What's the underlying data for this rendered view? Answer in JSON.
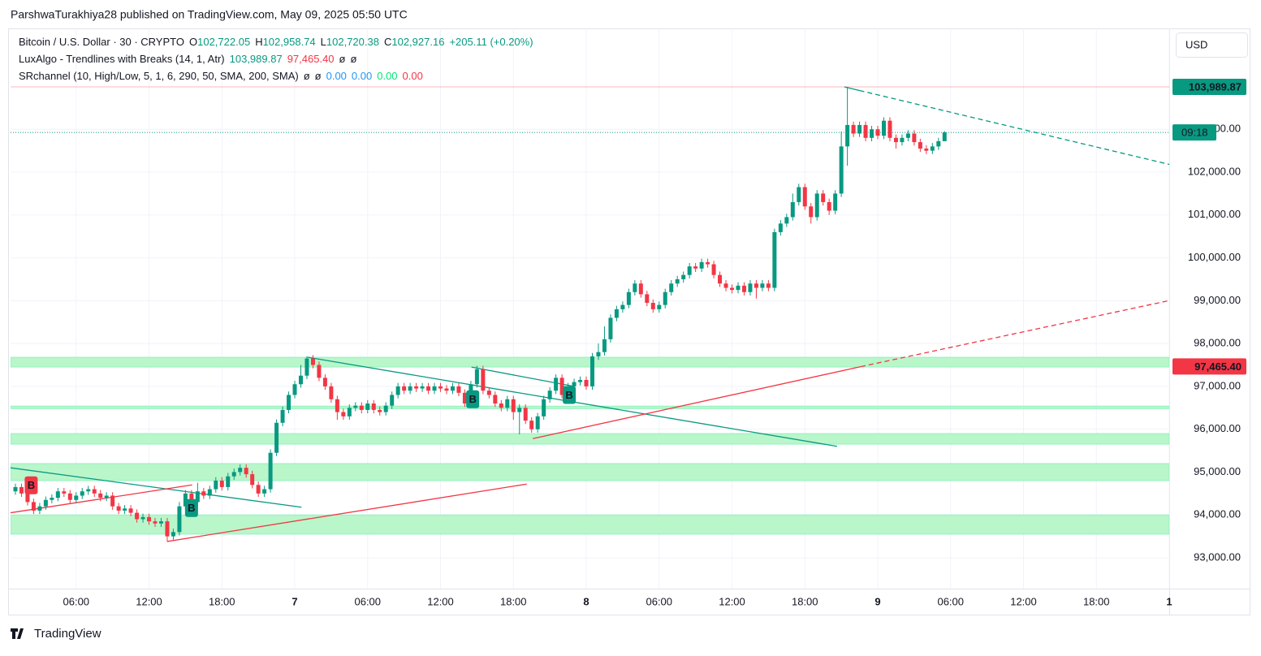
{
  "header": {
    "published": "ParshwaTurakhiya28 published on TradingView.com, May 09, 2025 05:50 UTC"
  },
  "legend": [
    [
      {
        "text": "Bitcoin / U.S. Dollar · 30 · CRYPTO",
        "color": "#131722"
      },
      {
        "text": "O",
        "color": "#131722"
      },
      {
        "text": "102,722.05",
        "color": "#089981"
      },
      {
        "text": "H",
        "color": "#131722"
      },
      {
        "text": "102,958.74",
        "color": "#089981"
      },
      {
        "text": "L",
        "color": "#131722"
      },
      {
        "text": "102,720.38",
        "color": "#089981"
      },
      {
        "text": "C",
        "color": "#131722"
      },
      {
        "text": "102,927.16",
        "color": "#089981"
      },
      {
        "text": "+205.11 (+0.20%)",
        "color": "#089981"
      }
    ],
    [
      {
        "text": "LuxAlgo - Trendlines with Breaks (14, 1, Atr)",
        "color": "#131722"
      },
      {
        "text": "103,989.87",
        "color": "#089981"
      },
      {
        "text": "97,465.40",
        "color": "#f23645"
      },
      {
        "text": "ø",
        "color": "#131722"
      },
      {
        "text": "ø",
        "color": "#131722"
      }
    ],
    [
      {
        "text": "SRchannel (10, High/Low, 5, 1, 6, 290, 50, SMA, 200, SMA)",
        "color": "#131722"
      },
      {
        "text": "ø",
        "color": "#131722"
      },
      {
        "text": "ø",
        "color": "#131722"
      },
      {
        "text": "0.00",
        "color": "#2196f3"
      },
      {
        "text": "0.00",
        "color": "#2196f3"
      },
      {
        "text": "0.00",
        "color": "#00e676"
      },
      {
        "text": "0.00",
        "color": "#f23645"
      }
    ]
  ],
  "currency": "USD",
  "countdown": "09:18",
  "footer": "TradingView",
  "chart_data": {
    "type": "candlestick",
    "up_color": "#089981",
    "down_color": "#f23645",
    "grid": true,
    "open": [
      94550,
      94650,
      94500,
      94300,
      94100,
      94200,
      94350,
      94400,
      94550,
      94500,
      94350,
      94450,
      94550,
      94600,
      94500,
      94400,
      94450,
      94200,
      94100,
      94150,
      94050,
      93900,
      93950,
      93850,
      93800,
      93850,
      93500,
      93600,
      94200,
      94500,
      94300,
      94550,
      94450,
      94600,
      94800,
      94650,
      94900,
      95000,
      95100,
      94950,
      94700,
      94500,
      94600,
      95450,
      96150,
      96450,
      96800,
      97050,
      97250,
      97650,
      97500,
      97200,
      97000,
      96700,
      96400,
      96300,
      96500,
      96550,
      96450,
      96600,
      96450,
      96400,
      96550,
      96800,
      97000,
      96900,
      97000,
      96950,
      97000,
      96900,
      97000,
      96950,
      96900,
      97000,
      96850,
      96600,
      97050,
      97400,
      96900,
      96800,
      96600,
      96500,
      96700,
      96400,
      96500,
      96200,
      96000,
      96300,
      96700,
      96900,
      97200,
      96800,
      97000,
      97100,
      97150,
      97000,
      97700,
      97800,
      98100,
      98600,
      98800,
      98900,
      99200,
      99400,
      99150,
      98950,
      98800,
      98900,
      99200,
      99400,
      99500,
      99600,
      99800,
      99750,
      99900,
      99850,
      99600,
      99400,
      99300,
      99250,
      99350,
      99200,
      99400,
      99300,
      99400,
      99300,
      100600,
      100800,
      100950,
      101300,
      101650,
      101200,
      100950,
      101500,
      101300,
      101100,
      101500,
      102600,
      103100,
      102900,
      103100,
      102800,
      103000,
      102850,
      103200,
      102800,
      102700,
      102800,
      102900,
      102700,
      102550,
      102500,
      102600,
      102722.05
    ],
    "high": [
      94730,
      94730,
      94580,
      94380,
      94280,
      94430,
      94480,
      94630,
      94630,
      94580,
      94530,
      94630,
      94680,
      94680,
      94580,
      94530,
      94530,
      94280,
      94230,
      94230,
      94130,
      94030,
      94030,
      93930,
      93930,
      93930,
      93680,
      94300,
      94580,
      94580,
      94750,
      94630,
      94680,
      94880,
      94880,
      94980,
      95080,
      95180,
      95180,
      95030,
      94780,
      94680,
      95530,
      96230,
      96530,
      96880,
      97130,
      97500,
      97700,
      97730,
      97580,
      97280,
      97080,
      96780,
      96480,
      96580,
      96630,
      96630,
      96680,
      96680,
      96530,
      96630,
      96880,
      97080,
      97080,
      97080,
      97080,
      97080,
      97080,
      97080,
      97080,
      97030,
      97080,
      97080,
      96930,
      97130,
      97480,
      97480,
      96980,
      96880,
      96680,
      96780,
      96780,
      96580,
      96580,
      96280,
      96380,
      96780,
      96980,
      97280,
      97280,
      97080,
      97180,
      97230,
      97230,
      97780,
      98000,
      98400,
      98680,
      98880,
      98980,
      99280,
      99480,
      99480,
      99230,
      99030,
      98980,
      99280,
      99480,
      99580,
      99680,
      99880,
      99880,
      99980,
      99980,
      99930,
      99680,
      99480,
      99380,
      99430,
      99430,
      99480,
      99480,
      99480,
      99480,
      100680,
      100880,
      101030,
      101500,
      101730,
      101730,
      101280,
      101580,
      101580,
      101380,
      101580,
      102950,
      103989.87,
      103180,
      103180,
      103180,
      103080,
      103080,
      103280,
      103280,
      102880,
      102880,
      102980,
      102980,
      102780,
      102630,
      102680,
      102800,
      102958.74
    ],
    "low": [
      94470,
      94420,
      94220,
      94020,
      94020,
      94120,
      94270,
      94320,
      94420,
      94270,
      94270,
      94370,
      94470,
      94420,
      94320,
      94320,
      94120,
      94020,
      94020,
      93970,
      93820,
      93820,
      93770,
      93720,
      93720,
      93380,
      93420,
      93520,
      94120,
      94220,
      94220,
      94370,
      94370,
      94520,
      94570,
      94570,
      94820,
      94920,
      94870,
      94620,
      94420,
      94420,
      94520,
      95370,
      96070,
      96370,
      96720,
      96970,
      97170,
      97420,
      97120,
      96920,
      96620,
      96220,
      96220,
      96220,
      96420,
      96370,
      96370,
      96370,
      96320,
      96320,
      96470,
      96720,
      96820,
      96820,
      96870,
      96870,
      96820,
      96820,
      96870,
      96820,
      96820,
      96770,
      96520,
      96520,
      96970,
      96820,
      96720,
      96520,
      96420,
      96420,
      96220,
      95880,
      96120,
      95920,
      95920,
      96220,
      96620,
      96820,
      96720,
      96720,
      96920,
      97020,
      96920,
      96920,
      97620,
      97720,
      98020,
      98520,
      98720,
      98820,
      99120,
      99070,
      98870,
      98720,
      98720,
      98820,
      99120,
      99320,
      99420,
      99520,
      99670,
      99670,
      99770,
      99520,
      99320,
      99220,
      99170,
      99170,
      99120,
      99120,
      99050,
      99220,
      99220,
      99220,
      100520,
      100720,
      100870,
      101220,
      101120,
      100800,
      100870,
      101220,
      101000,
      101020,
      101420,
      102150,
      102820,
      102820,
      102720,
      102720,
      102770,
      102770,
      102720,
      102550,
      102620,
      102720,
      102620,
      102470,
      102420,
      102420,
      102520,
      102720.38
    ],
    "close": [
      94650,
      94500,
      94300,
      94100,
      94200,
      94350,
      94400,
      94550,
      94500,
      94350,
      94450,
      94550,
      94600,
      94500,
      94400,
      94450,
      94200,
      94100,
      94150,
      94050,
      93900,
      93950,
      93850,
      93800,
      93850,
      93500,
      93600,
      94200,
      94500,
      94300,
      94550,
      94450,
      94600,
      94800,
      94650,
      94900,
      95000,
      95100,
      94950,
      94700,
      94500,
      94600,
      95450,
      96150,
      96450,
      96800,
      97050,
      97250,
      97650,
      97500,
      97200,
      97000,
      96700,
      96400,
      96300,
      96500,
      96550,
      96450,
      96600,
      96450,
      96400,
      96550,
      96800,
      97000,
      96900,
      97000,
      96950,
      97000,
      96900,
      97000,
      96950,
      96900,
      97000,
      96850,
      96600,
      97050,
      97400,
      96900,
      96800,
      96600,
      96500,
      96700,
      96400,
      96500,
      96200,
      96000,
      96300,
      96700,
      96900,
      97200,
      96800,
      97000,
      97100,
      97150,
      97000,
      97700,
      97800,
      98100,
      98600,
      98800,
      98900,
      99200,
      99400,
      99150,
      98950,
      98800,
      98900,
      99200,
      99400,
      99500,
      99600,
      99800,
      99750,
      99900,
      99850,
      99600,
      99400,
      99300,
      99250,
      99350,
      99200,
      99400,
      99300,
      99400,
      99300,
      100600,
      100800,
      100950,
      101300,
      101650,
      101200,
      100950,
      101500,
      101300,
      101100,
      101500,
      102600,
      103100,
      102900,
      103100,
      102800,
      103000,
      102850,
      103200,
      102800,
      102700,
      102800,
      102900,
      102700,
      102550,
      102500,
      102600,
      102722.05,
      102927.16
    ],
    "xlim": [
      -0.8,
      190
    ],
    "xticks": [
      {
        "value": 10,
        "label": "06:00"
      },
      {
        "value": 22,
        "label": "12:00"
      },
      {
        "value": 34,
        "label": "18:00"
      },
      {
        "value": 46,
        "label": "7"
      },
      {
        "value": 58,
        "label": "06:00"
      },
      {
        "value": 70,
        "label": "12:00"
      },
      {
        "value": 82,
        "label": "18:00"
      },
      {
        "value": 94,
        "label": "8"
      },
      {
        "value": 106,
        "label": "06:00"
      },
      {
        "value": 118,
        "label": "12:00"
      },
      {
        "value": 130,
        "label": "18:00"
      },
      {
        "value": 142,
        "label": "9"
      },
      {
        "value": 154,
        "label": "06:00"
      },
      {
        "value": 166,
        "label": "12:00"
      },
      {
        "value": 178,
        "label": "18:00"
      },
      {
        "value": 190,
        "label": "1"
      }
    ],
    "ylim": [
      92280,
      105354
    ],
    "yticks": [
      {
        "value": 93000,
        "label": "93,000.00"
      },
      {
        "value": 94000,
        "label": "94,000.00"
      },
      {
        "value": 95000,
        "label": "95,000.00"
      },
      {
        "value": 96000,
        "label": "96,000.00"
      },
      {
        "value": 97000,
        "label": "97,000.00"
      },
      {
        "value": 98000,
        "label": "98,000.00"
      },
      {
        "value": 99000,
        "label": "99,000.00"
      },
      {
        "value": 100000,
        "label": "100,000.00"
      },
      {
        "value": 101000,
        "label": "101,000.00"
      },
      {
        "value": 102000,
        "label": "102,000.00"
      },
      {
        "value": 103000,
        "label": "103,000.00"
      }
    ],
    "zone_color": "#b9f6ca",
    "zones": [
      {
        "low": 97450,
        "high": 97680
      },
      {
        "low": 96480,
        "high": 96540
      },
      {
        "low": 95650,
        "high": 95900
      },
      {
        "low": 94800,
        "high": 95200
      },
      {
        "low": 93550,
        "high": 94000
      }
    ],
    "trendlines": [
      {
        "x": [
          -0.8,
          47.1
        ],
        "y": [
          95100,
          94180
        ],
        "color": "#089981",
        "style": "solid"
      },
      {
        "x": [
          48.1,
          135.3
        ],
        "y": [
          97680,
          95600
        ],
        "color": "#089981",
        "style": "solid"
      },
      {
        "x": [
          75.1,
          92
        ],
        "y": [
          97450,
          97000
        ],
        "color": "#089981",
        "style": "solid"
      },
      {
        "x": [
          136.5,
          139
        ],
        "y": [
          103990,
          103905
        ],
        "color": "#089981",
        "style": "solid"
      },
      {
        "x": [
          139,
          190.9
        ],
        "y": [
          103905,
          102150
        ],
        "color": "#089981",
        "style": "dashed"
      },
      {
        "x": [
          -0.8,
          29.1
        ],
        "y": [
          94050,
          94700
        ],
        "color": "#f23645",
        "style": "solid"
      },
      {
        "x": [
          25,
          84.2
        ],
        "y": [
          93380,
          94720
        ],
        "color": "#f23645",
        "style": "solid"
      },
      {
        "x": [
          85.2,
          139.2
        ],
        "y": [
          95780,
          97460
        ],
        "color": "#f23645",
        "style": "solid"
      },
      {
        "x": [
          139.2,
          190.9
        ],
        "y": [
          97460,
          99030
        ],
        "color": "#f23645",
        "style": "dashed"
      }
    ],
    "signals": [
      {
        "x": 2.6,
        "y": 94690,
        "text": "B",
        "color": "#f23645"
      },
      {
        "x": 29,
        "y": 94160,
        "text": "B",
        "color": "#089981"
      },
      {
        "x": 75.3,
        "y": 96700,
        "text": "B",
        "color": "#089981"
      },
      {
        "x": 91.2,
        "y": 96800,
        "text": "B",
        "color": "#089981"
      }
    ],
    "price_labels": [
      {
        "value": 103989.87,
        "label": "103,989.87",
        "color": "#089981"
      },
      {
        "value": 97465.4,
        "label": "97,465.40",
        "color": "#f23645"
      }
    ]
  }
}
